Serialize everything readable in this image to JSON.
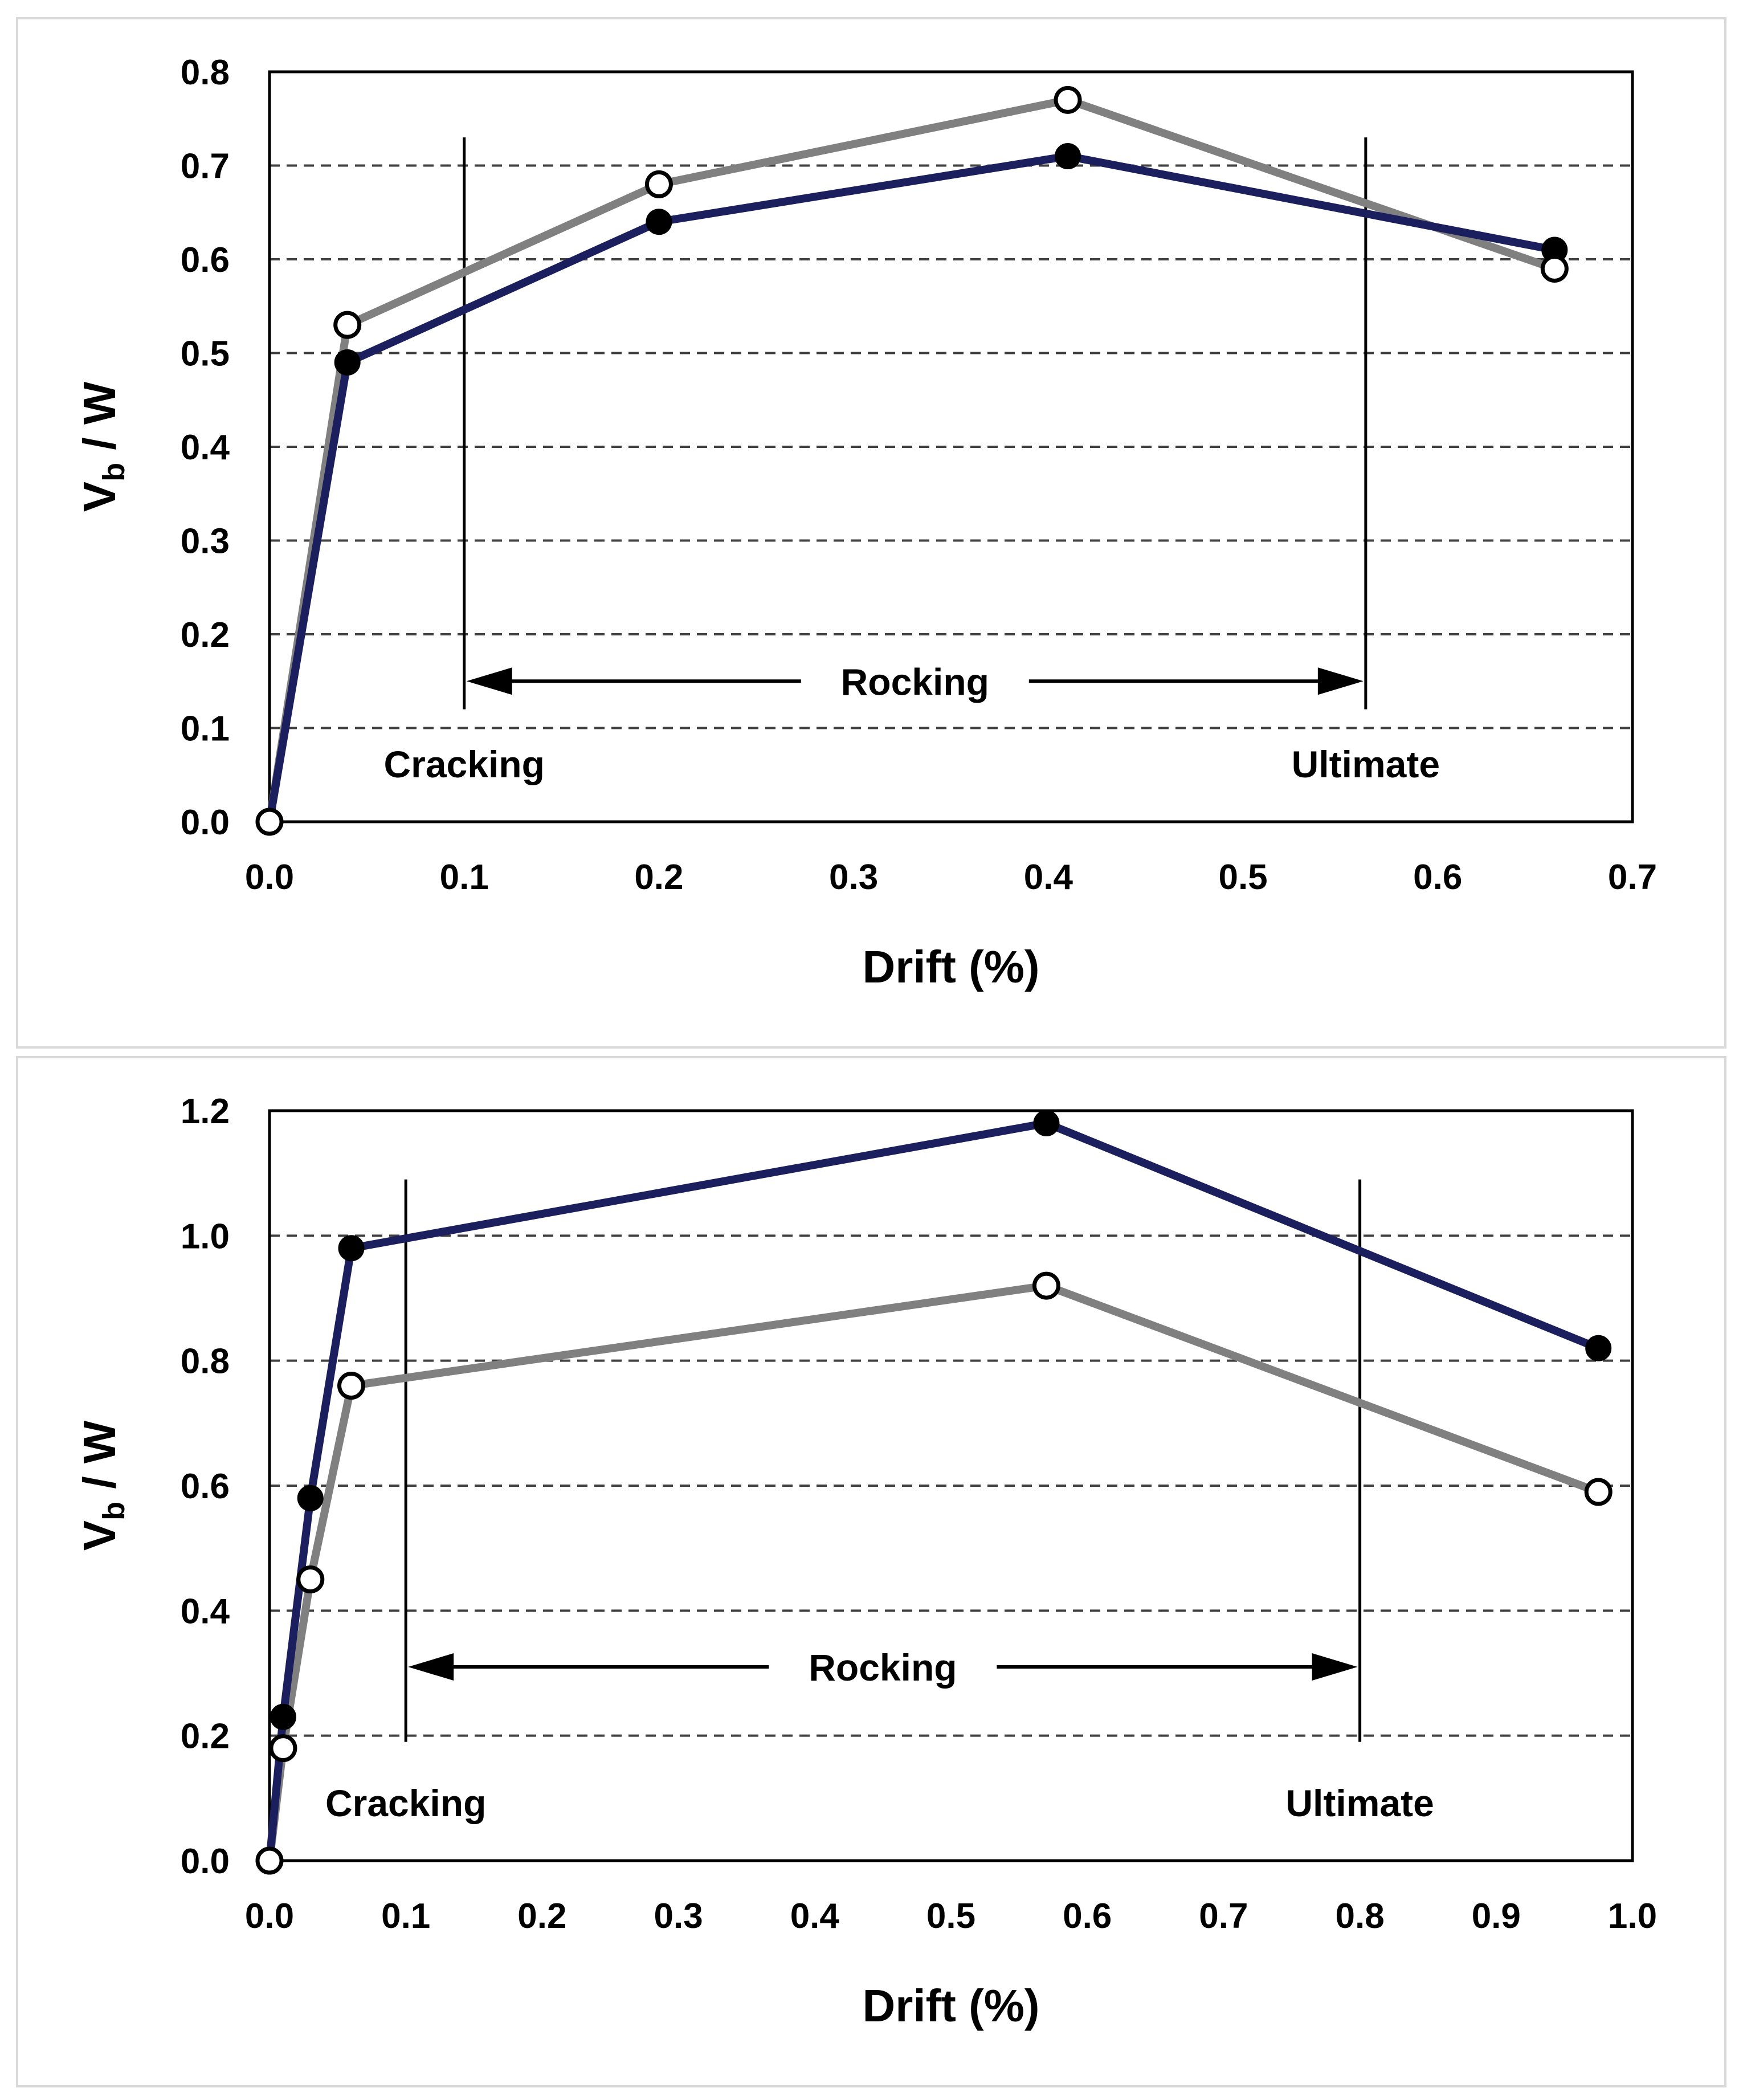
{
  "chart_data": [
    {
      "type": "line",
      "title": "",
      "xlabel": "Drift (%)",
      "ylabel_main": "V",
      "ylabel_sub": "b",
      "ylabel_tail": " / W",
      "xlim": [
        0,
        0.7
      ],
      "ylim": [
        0,
        0.8
      ],
      "x_ticks": [
        "0.0",
        "0.1",
        "0.2",
        "0.3",
        "0.4",
        "0.5",
        "0.6",
        "0.7"
      ],
      "y_ticks": [
        "0.0",
        "0.1",
        "0.2",
        "0.3",
        "0.4",
        "0.5",
        "0.6",
        "0.7",
        "0.8"
      ],
      "grid": "horizontal-dashed",
      "series": [
        {
          "name": "solid-markers",
          "color": "#1b1f5e",
          "marker": "filled",
          "x": [
            0.0,
            0.04,
            0.2,
            0.41,
            0.66
          ],
          "y": [
            0.0,
            0.49,
            0.64,
            0.71,
            0.61
          ]
        },
        {
          "name": "open-markers",
          "color": "#808080",
          "marker": "open",
          "x": [
            0.0,
            0.04,
            0.2,
            0.41,
            0.66
          ],
          "y": [
            0.0,
            0.53,
            0.68,
            0.77,
            0.59
          ]
        }
      ],
      "annotations": {
        "cracking_label": "Cracking",
        "ultimate_label": "Ultimate",
        "rocking_label": "Rocking",
        "cracking_x": 0.1,
        "ultimate_x": 0.563,
        "vline_top_y": 0.73,
        "vline_bottom_y": 0.12,
        "arrow_y": 0.15
      }
    },
    {
      "type": "line",
      "title": "",
      "xlabel": "Drift (%)",
      "ylabel_main": "V",
      "ylabel_sub": "b",
      "ylabel_tail": " / W",
      "xlim": [
        0,
        1.0
      ],
      "ylim": [
        0,
        1.2
      ],
      "x_ticks": [
        "0.0",
        "0.1",
        "0.2",
        "0.3",
        "0.4",
        "0.5",
        "0.6",
        "0.7",
        "0.8",
        "0.9",
        "1.0"
      ],
      "y_ticks": [
        "0.0",
        "0.2",
        "0.4",
        "0.6",
        "0.8",
        "1.0",
        "1.2"
      ],
      "grid": "horizontal-dashed",
      "series": [
        {
          "name": "solid-markers",
          "color": "#1b1f5e",
          "marker": "filled",
          "x": [
            0.0,
            0.01,
            0.03,
            0.06,
            0.57,
            0.975
          ],
          "y": [
            0.0,
            0.23,
            0.58,
            0.98,
            1.18,
            0.82
          ]
        },
        {
          "name": "open-markers",
          "color": "#808080",
          "marker": "open",
          "x": [
            0.0,
            0.01,
            0.03,
            0.06,
            0.57,
            0.975
          ],
          "y": [
            0.0,
            0.18,
            0.45,
            0.76,
            0.92,
            0.59
          ]
        }
      ],
      "annotations": {
        "cracking_label": "Cracking",
        "ultimate_label": "Ultimate",
        "rocking_label": "Rocking",
        "cracking_x": 0.1,
        "ultimate_x": 0.8,
        "vline_top_y": 1.09,
        "vline_bottom_y": 0.19,
        "arrow_y": 0.31
      }
    }
  ]
}
